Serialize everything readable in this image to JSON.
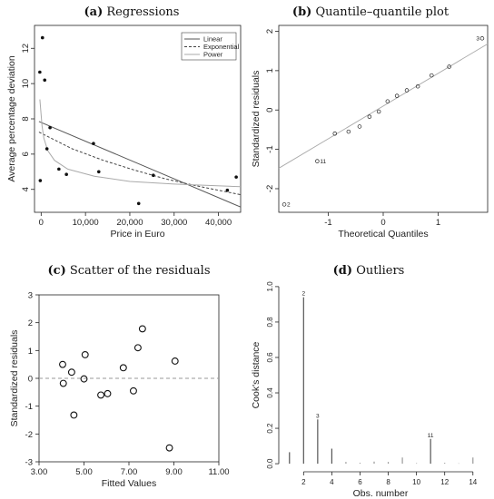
{
  "chart_data": [
    {
      "id": "a",
      "label": "(a)",
      "title": "Regressions",
      "type": "scatter",
      "xlabel": "Price in Euro",
      "ylabel": "Average percentage deviation",
      "xlim": [
        -1500,
        45000
      ],
      "ylim": [
        2.7,
        13.3
      ],
      "xticks": [
        0,
        10000,
        20000,
        30000,
        40000
      ],
      "xtick_labels": [
        "0",
        "10,000",
        "20,000",
        "30,000",
        "40,000"
      ],
      "yticks": [
        4,
        6,
        8,
        10,
        12
      ],
      "points": [
        {
          "x": -300,
          "y": 10.65
        },
        {
          "x": 300,
          "y": 12.6
        },
        {
          "x": 800,
          "y": 10.2
        },
        {
          "x": 1300,
          "y": 6.3
        },
        {
          "x": 2000,
          "y": 7.5
        },
        {
          "x": -200,
          "y": 4.5
        },
        {
          "x": 4000,
          "y": 5.15
        },
        {
          "x": 5700,
          "y": 4.85
        },
        {
          "x": 11800,
          "y": 6.6
        },
        {
          "x": 13000,
          "y": 5.0
        },
        {
          "x": 22000,
          "y": 3.2
        },
        {
          "x": 25300,
          "y": 4.8
        },
        {
          "x": 42000,
          "y": 3.95
        },
        {
          "x": 44000,
          "y": 4.7
        }
      ],
      "lines": [
        {
          "name": "Linear",
          "style": "solid",
          "color": "#555555",
          "x": [
            -500,
            45000
          ],
          "y": [
            7.85,
            3.0
          ]
        },
        {
          "name": "Exponential",
          "style": "dashed",
          "color": "#444444",
          "x": [
            -500,
            7000,
            14000,
            21000,
            28000,
            35000,
            45000
          ],
          "y": [
            7.25,
            6.3,
            5.65,
            5.1,
            4.6,
            4.2,
            3.7
          ]
        },
        {
          "name": "Power",
          "style": "solid",
          "color": "#aaaaaa",
          "x": [
            -300,
            200,
            600,
            1500,
            3000,
            6000,
            12000,
            20000,
            30000,
            45000
          ],
          "y": [
            9.1,
            7.6,
            6.9,
            6.2,
            5.65,
            5.15,
            4.75,
            4.45,
            4.3,
            4.15
          ]
        }
      ],
      "legend": {
        "position": "top-right",
        "entries": [
          "Linear",
          "Exponential",
          "Power"
        ]
      }
    },
    {
      "id": "b",
      "label": "(b)",
      "title": "Quantile–quantile plot",
      "type": "scatter",
      "xlabel": "Theoretical Quantiles",
      "ylabel": "Standardized residuals",
      "xlim": [
        -1.9,
        1.9
      ],
      "ylim": [
        -2.6,
        2.15
      ],
      "xticks": [
        -1,
        0,
        1
      ],
      "yticks": [
        -2,
        -1,
        0,
        1,
        2
      ],
      "points": [
        {
          "x": -1.8,
          "y": -2.4,
          "label": "2"
        },
        {
          "x": -1.2,
          "y": -1.3,
          "label": "11"
        },
        {
          "x": -0.88,
          "y": -0.6
        },
        {
          "x": -0.63,
          "y": -0.55
        },
        {
          "x": -0.43,
          "y": -0.42
        },
        {
          "x": -0.25,
          "y": -0.17
        },
        {
          "x": -0.08,
          "y": -0.04
        },
        {
          "x": 0.08,
          "y": 0.22
        },
        {
          "x": 0.25,
          "y": 0.36
        },
        {
          "x": 0.43,
          "y": 0.5
        },
        {
          "x": 0.63,
          "y": 0.6
        },
        {
          "x": 0.88,
          "y": 0.88
        },
        {
          "x": 1.2,
          "y": 1.1
        },
        {
          "x": 1.8,
          "y": 1.82,
          "label": "3"
        }
      ],
      "reference_line": {
        "x": [
          -1.9,
          1.9
        ],
        "y": [
          -1.48,
          1.68
        ]
      }
    },
    {
      "id": "c",
      "label": "(c)",
      "title": "Scatter of the residuals",
      "type": "scatter",
      "xlabel": "Fitted Values",
      "ylabel": "Standardized residuals",
      "xlim": [
        3,
        11
      ],
      "ylim": [
        -3,
        3
      ],
      "xticks": [
        3,
        5,
        7,
        9,
        11
      ],
      "xtick_labels": [
        "3.00",
        "5.00",
        "7.00",
        "9.00",
        "11.00"
      ],
      "yticks": [
        -3,
        -2,
        -1,
        0,
        1,
        2,
        3
      ],
      "hline": 0,
      "points": [
        {
          "x": 4.05,
          "y": 0.5
        },
        {
          "x": 4.08,
          "y": -0.18
        },
        {
          "x": 4.45,
          "y": 0.22
        },
        {
          "x": 4.55,
          "y": -1.32
        },
        {
          "x": 5.0,
          "y": -0.02
        },
        {
          "x": 5.05,
          "y": 0.85
        },
        {
          "x": 5.75,
          "y": -0.6
        },
        {
          "x": 6.05,
          "y": -0.55
        },
        {
          "x": 6.75,
          "y": 0.38
        },
        {
          "x": 7.2,
          "y": -0.45
        },
        {
          "x": 7.4,
          "y": 1.1
        },
        {
          "x": 7.6,
          "y": 1.78
        },
        {
          "x": 8.8,
          "y": -2.5
        },
        {
          "x": 9.05,
          "y": 0.62
        }
      ]
    },
    {
      "id": "d",
      "label": "(d)",
      "title": "Outliers",
      "type": "bar",
      "xlabel": "Obs. number",
      "ylabel": "Cook's distance",
      "xlim": [
        0.5,
        14.4
      ],
      "ylim": [
        -0.02,
        1.02
      ],
      "xticks": [
        2,
        4,
        6,
        8,
        10,
        12,
        14
      ],
      "yticks": [
        0.0,
        0.2,
        0.4,
        0.6,
        0.8,
        1.0
      ],
      "ytick_labels": [
        "0.0",
        "0.2",
        "0.4",
        "0.6",
        "0.8",
        "1.0"
      ],
      "categories": [
        1,
        2,
        3,
        4,
        5,
        6,
        7,
        8,
        9,
        10,
        11,
        12,
        13,
        14
      ],
      "values": [
        0.065,
        0.94,
        0.25,
        0.085,
        0.01,
        0.005,
        0.012,
        0.01,
        0.035,
        0.003,
        0.14,
        0.005,
        0.002,
        0.035
      ],
      "annotations": [
        {
          "x": 2,
          "y": 0.94,
          "text": "2"
        },
        {
          "x": 3,
          "y": 0.25,
          "text": "3"
        },
        {
          "x": 11,
          "y": 0.14,
          "text": "11"
        }
      ]
    }
  ]
}
